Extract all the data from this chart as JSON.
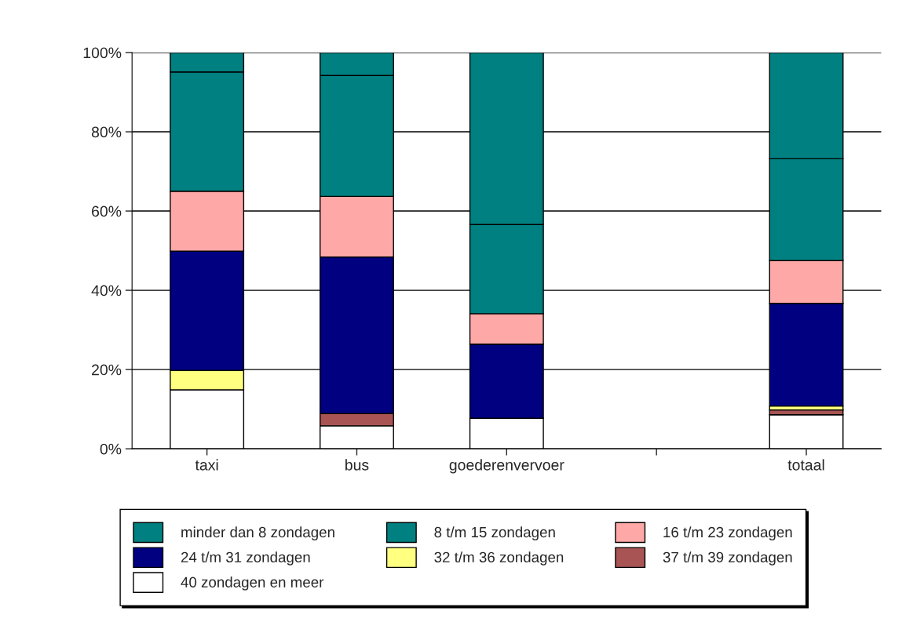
{
  "chart_data": {
    "type": "bar",
    "stacked": true,
    "categories": [
      "taxi",
      "bus",
      "goederenvervoer",
      null,
      "totaal"
    ],
    "series": [
      {
        "name": "40 zondagen en meer",
        "color": "#ffffff",
        "values": [
          14.9,
          5.8,
          7.7,
          null,
          8.6
        ]
      },
      {
        "name": "37 t/m 39 zondagen",
        "color": "#a85454",
        "values": [
          0,
          3.1,
          0,
          null,
          1.2
        ]
      },
      {
        "name": "32 t/m 36 zondagen",
        "color": "#ffff80",
        "values": [
          4.9,
          0,
          0,
          null,
          1.0
        ]
      },
      {
        "name": "24 t/m 31 zondagen",
        "color": "#000080",
        "values": [
          30.1,
          39.5,
          18.7,
          null,
          25.9
        ]
      },
      {
        "name": "16 t/m 23 zondagen",
        "color": "#ffa8a8",
        "values": [
          15.1,
          15.3,
          7.7,
          null,
          10.8
        ]
      },
      {
        "name": "8 t/m 15 zondagen",
        "color": "#008080",
        "values": [
          30.1,
          30.5,
          22.5,
          null,
          25.7
        ]
      },
      {
        "name": "minder dan 8 zondagen",
        "color": "#008080",
        "values": [
          4.9,
          5.8,
          43.4,
          null,
          26.8
        ]
      }
    ],
    "ylim": [
      0,
      100
    ],
    "yticks": [
      {
        "value": 0,
        "label": "0%"
      },
      {
        "value": 20,
        "label": "20%"
      },
      {
        "value": 40,
        "label": "40%"
      },
      {
        "value": 60,
        "label": "60%"
      },
      {
        "value": 80,
        "label": "80%"
      },
      {
        "value": 100,
        "label": "100%"
      }
    ],
    "grid": "y",
    "legend": "bottom"
  }
}
